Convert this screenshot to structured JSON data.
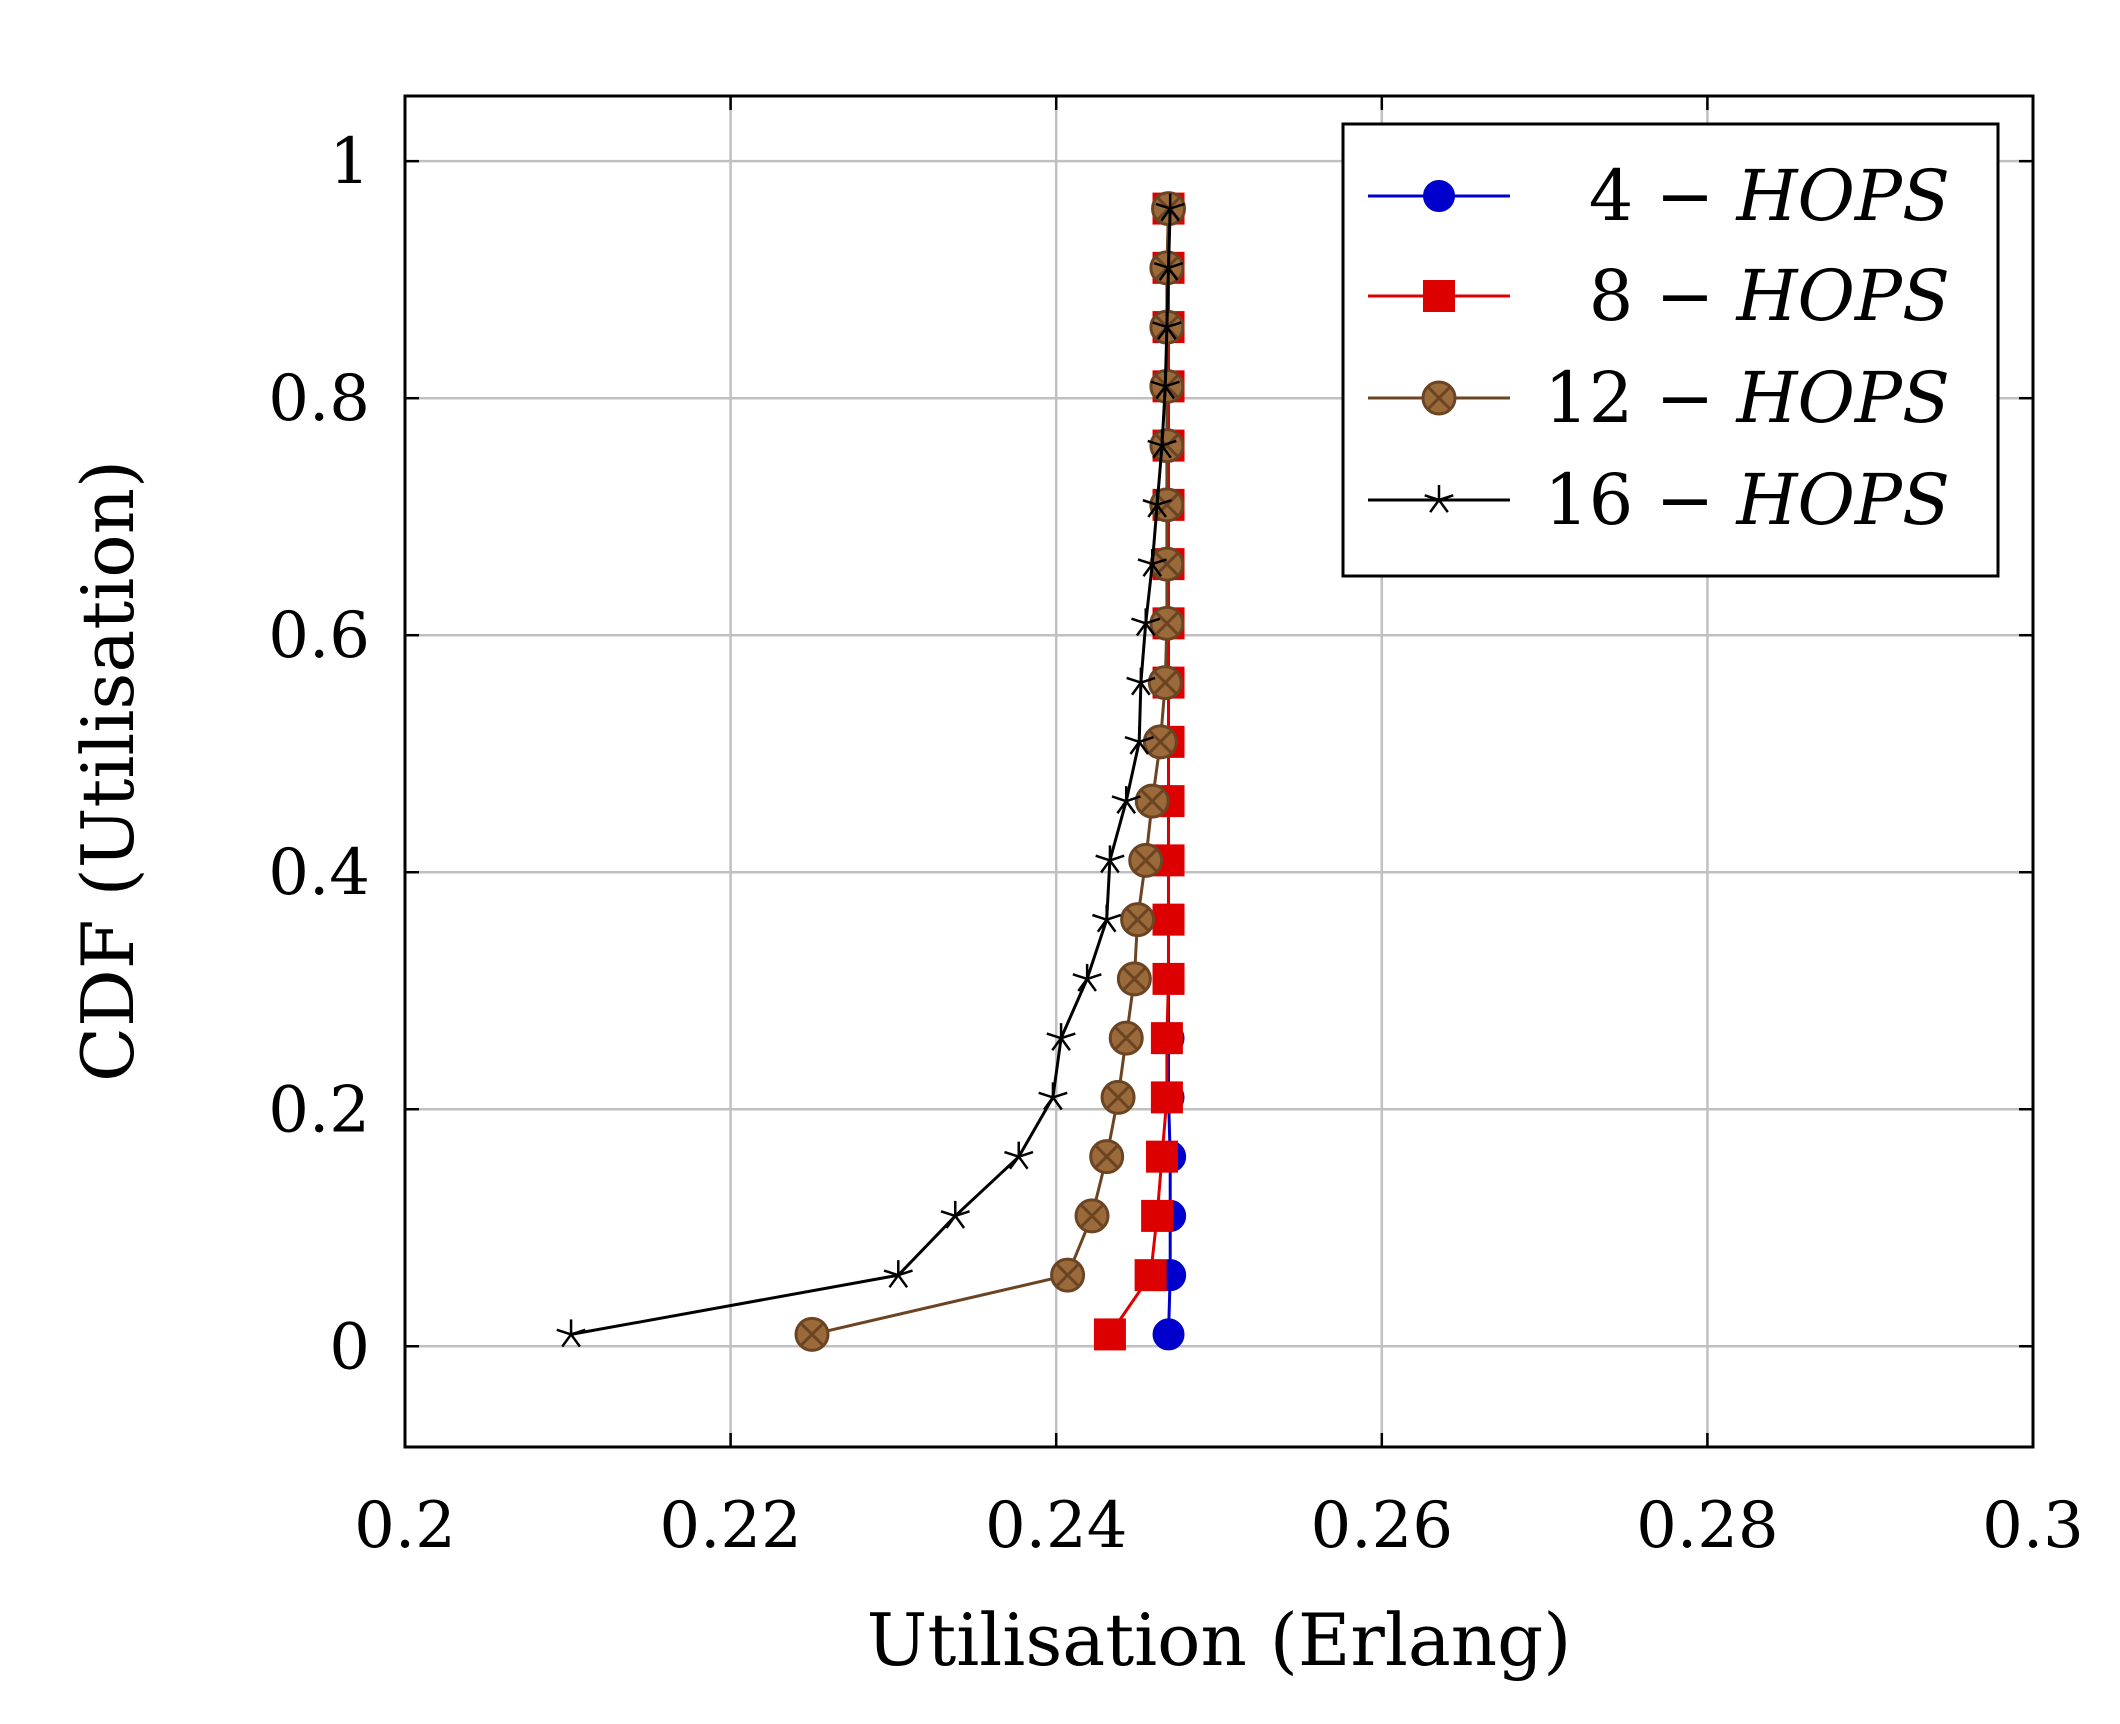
{
  "chart_data": {
    "type": "line",
    "title": "",
    "xlabel": "Utilisation (Erlang)",
    "ylabel": "CDF (Utilisation)",
    "xlim": [
      0.2,
      0.3
    ],
    "ylim": [
      -0.085,
      1.055
    ],
    "xticks": [
      0.2,
      0.22,
      0.24,
      0.26,
      0.28,
      0.3
    ],
    "xtick_labels": [
      "0.2",
      "0.22",
      "0.24",
      "0.26",
      "0.28",
      "0.3"
    ],
    "yticks": [
      0,
      0.2,
      0.4,
      0.6,
      0.8,
      1
    ],
    "ytick_labels": [
      "0",
      "0.2",
      "0.4",
      "0.6",
      "0.8",
      "1"
    ],
    "grid": true,
    "legend_position": "top-right",
    "series": [
      {
        "name": "4 − HOPS",
        "name_prefix": "4 − ",
        "name_suffix": "HOPS",
        "color": "#0000cc",
        "marker": "circle",
        "points": [
          [
            0.2469,
            0.01
          ],
          [
            0.247,
            0.06
          ],
          [
            0.247,
            0.11
          ],
          [
            0.247,
            0.16
          ],
          [
            0.2469,
            0.21
          ],
          [
            0.2469,
            0.26
          ],
          [
            0.2469,
            0.31
          ],
          [
            0.2469,
            0.36
          ],
          [
            0.2469,
            0.41
          ],
          [
            0.2469,
            0.46
          ],
          [
            0.2469,
            0.51
          ],
          [
            0.2469,
            0.56
          ],
          [
            0.2469,
            0.61
          ],
          [
            0.2469,
            0.66
          ],
          [
            0.2469,
            0.71
          ],
          [
            0.2469,
            0.76
          ],
          [
            0.2469,
            0.81
          ],
          [
            0.2469,
            0.86
          ],
          [
            0.2469,
            0.91
          ],
          [
            0.2469,
            0.96
          ]
        ]
      },
      {
        "name": "8 − HOPS",
        "name_prefix": "8 − ",
        "name_suffix": "HOPS",
        "color": "#dd0000",
        "marker": "square",
        "points": [
          [
            0.2433,
            0.01
          ],
          [
            0.2458,
            0.06
          ],
          [
            0.2462,
            0.11
          ],
          [
            0.2465,
            0.16
          ],
          [
            0.2468,
            0.21
          ],
          [
            0.2468,
            0.26
          ],
          [
            0.2469,
            0.31
          ],
          [
            0.2469,
            0.36
          ],
          [
            0.2469,
            0.41
          ],
          [
            0.2469,
            0.46
          ],
          [
            0.2469,
            0.51
          ],
          [
            0.2469,
            0.56
          ],
          [
            0.2469,
            0.61
          ],
          [
            0.2469,
            0.66
          ],
          [
            0.2469,
            0.71
          ],
          [
            0.2469,
            0.76
          ],
          [
            0.2469,
            0.81
          ],
          [
            0.2469,
            0.86
          ],
          [
            0.2469,
            0.91
          ],
          [
            0.2469,
            0.96
          ]
        ]
      },
      {
        "name": "12 − HOPS",
        "name_prefix": "12 − ",
        "name_suffix": "HOPS",
        "color": "#6b4423",
        "fill": "#9a6a3a",
        "marker": "circle-x",
        "points": [
          [
            0.225,
            0.01
          ],
          [
            0.2407,
            0.06
          ],
          [
            0.2422,
            0.11
          ],
          [
            0.2431,
            0.16
          ],
          [
            0.2438,
            0.21
          ],
          [
            0.2443,
            0.26
          ],
          [
            0.2448,
            0.31
          ],
          [
            0.245,
            0.36
          ],
          [
            0.2455,
            0.41
          ],
          [
            0.2459,
            0.46
          ],
          [
            0.2464,
            0.51
          ],
          [
            0.2467,
            0.56
          ],
          [
            0.2468,
            0.61
          ],
          [
            0.2468,
            0.66
          ],
          [
            0.2468,
            0.71
          ],
          [
            0.2468,
            0.76
          ],
          [
            0.2468,
            0.81
          ],
          [
            0.2468,
            0.86
          ],
          [
            0.2468,
            0.91
          ],
          [
            0.2469,
            0.96
          ]
        ]
      },
      {
        "name": "16 − HOPS",
        "name_prefix": "16 − ",
        "name_suffix": "HOPS",
        "color": "#000000",
        "marker": "star",
        "points": [
          [
            0.2102,
            0.01
          ],
          [
            0.2303,
            0.06
          ],
          [
            0.2338,
            0.11
          ],
          [
            0.2377,
            0.16
          ],
          [
            0.2398,
            0.21
          ],
          [
            0.2403,
            0.26
          ],
          [
            0.2419,
            0.31
          ],
          [
            0.2431,
            0.36
          ],
          [
            0.2433,
            0.41
          ],
          [
            0.2443,
            0.46
          ],
          [
            0.2451,
            0.51
          ],
          [
            0.2452,
            0.56
          ],
          [
            0.2455,
            0.61
          ],
          [
            0.2459,
            0.66
          ],
          [
            0.2462,
            0.71
          ],
          [
            0.2465,
            0.76
          ],
          [
            0.2467,
            0.81
          ],
          [
            0.2468,
            0.86
          ],
          [
            0.2469,
            0.91
          ],
          [
            0.247,
            0.96
          ]
        ]
      }
    ]
  }
}
